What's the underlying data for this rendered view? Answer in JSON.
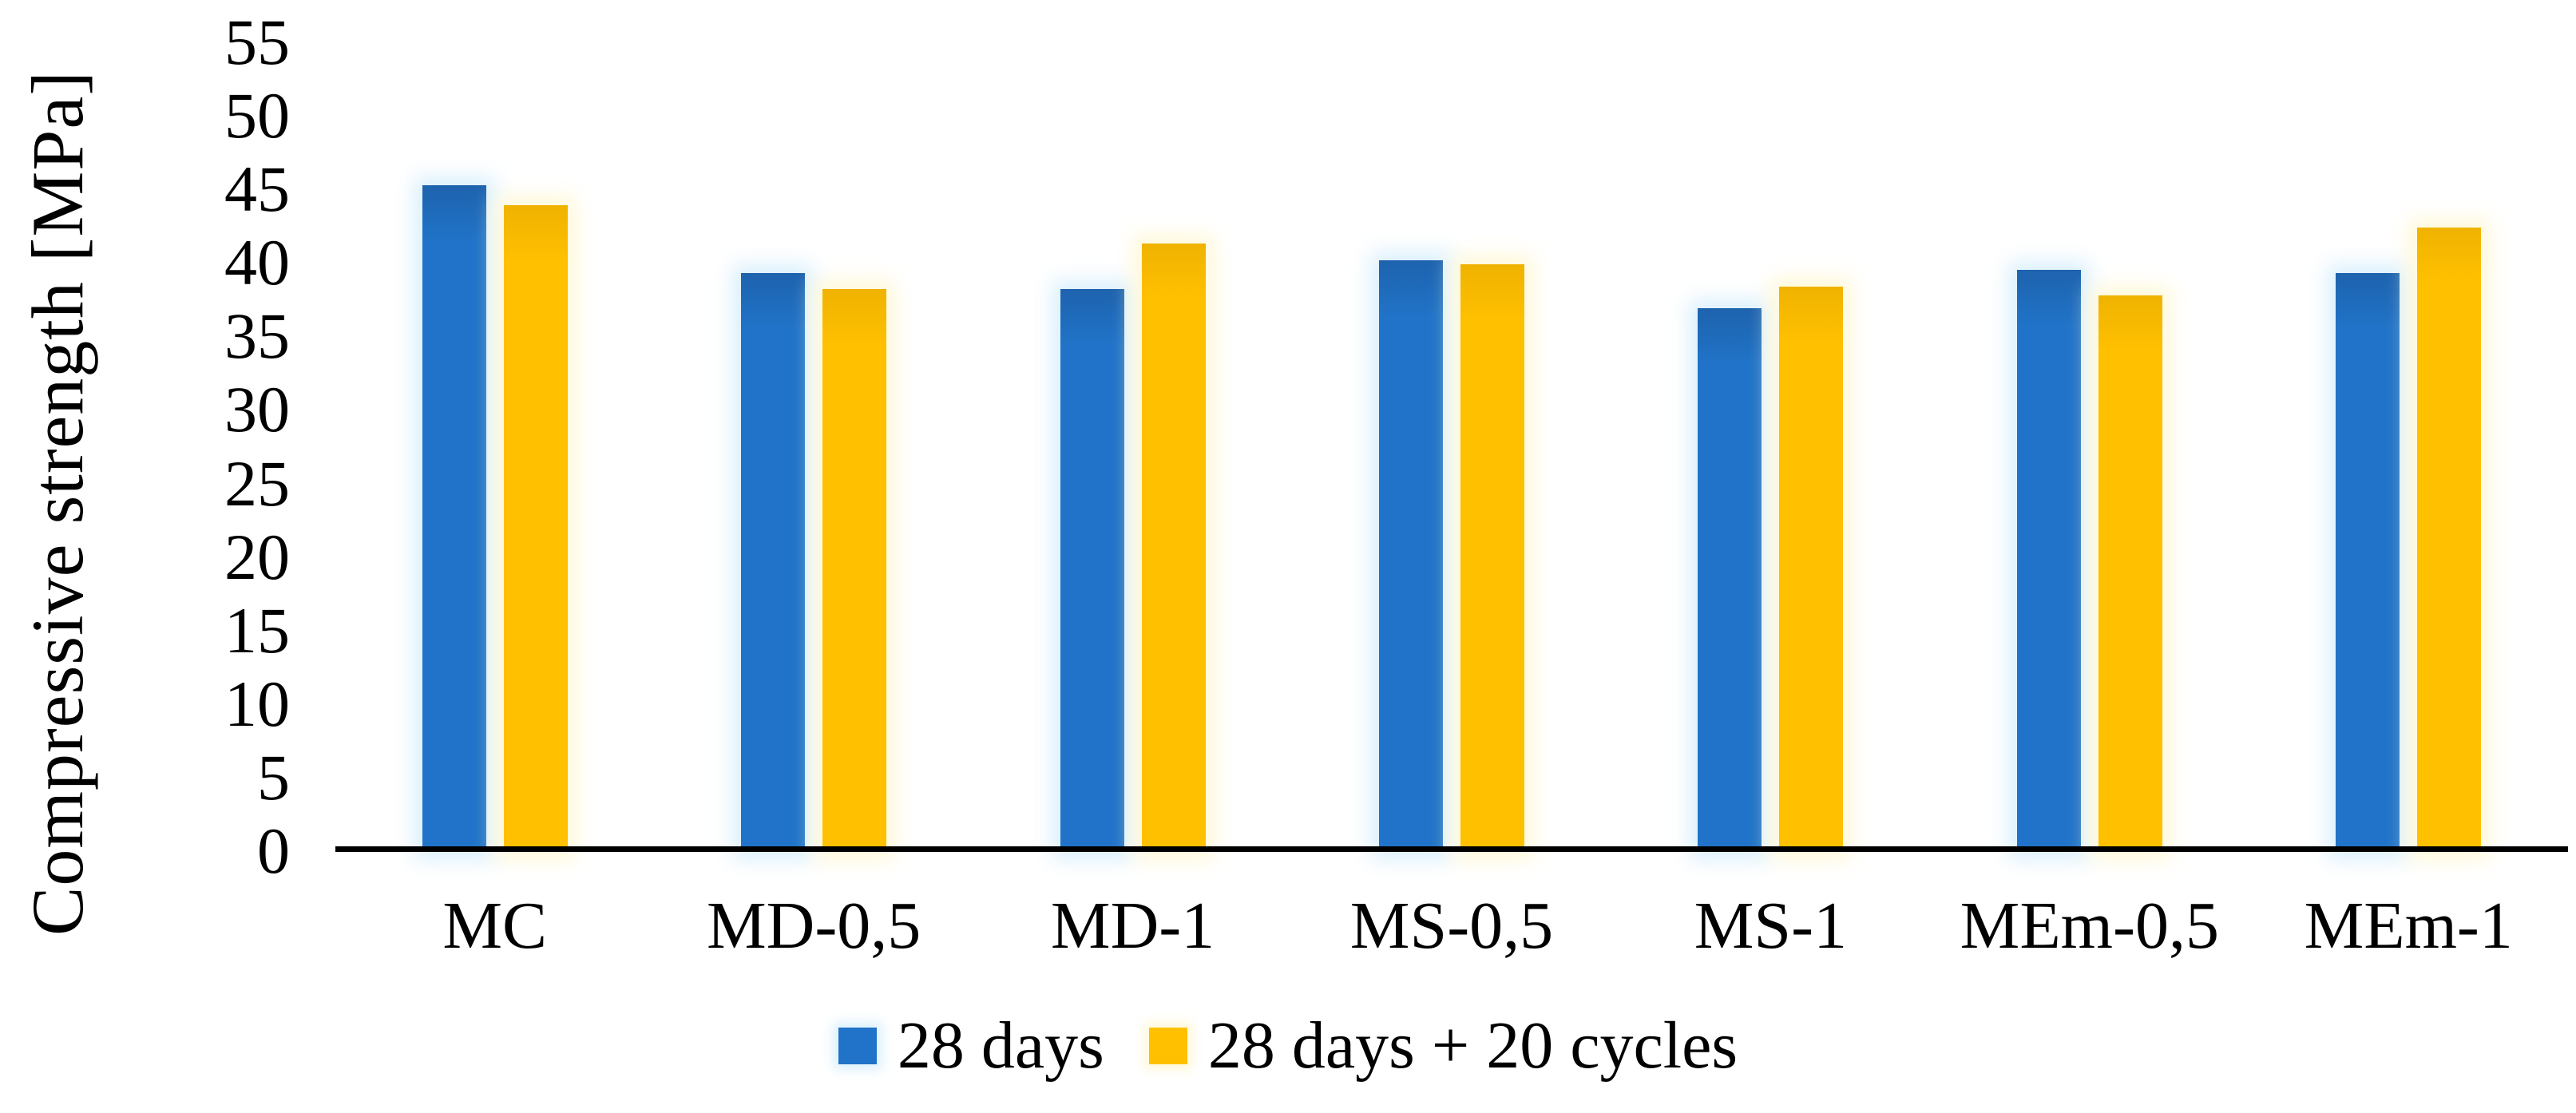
{
  "chart_data": {
    "type": "bar",
    "title": "",
    "xlabel": "",
    "ylabel": "Compressive strength [MPa]",
    "ylim": [
      0,
      55
    ],
    "yticks": [
      0,
      5,
      10,
      15,
      20,
      25,
      30,
      35,
      40,
      45,
      50,
      55
    ],
    "grid": false,
    "legend_position": "bottom-center",
    "axis_color": "#000000",
    "categories": [
      "MC",
      "MD-0,5",
      "MD-1",
      "MS-0,5",
      "MS-1",
      "MEm-0,5",
      "MEm-1"
    ],
    "series": [
      {
        "name": "28 days",
        "color": "#2073C8",
        "values": [
          45.3,
          39.3,
          38.2,
          40.2,
          36.9,
          39.5,
          39.3
        ]
      },
      {
        "name": "28 days + 20 cycles",
        "color": "#FFC000",
        "values": [
          43.9,
          38.2,
          41.3,
          39.9,
          38.4,
          37.8,
          42.4
        ]
      }
    ]
  }
}
